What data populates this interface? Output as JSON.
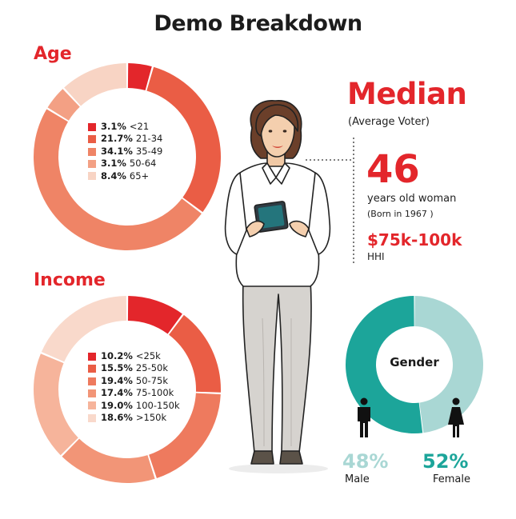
{
  "title": "Demo Breakdown",
  "age": {
    "label": "Age",
    "legend": [
      {
        "pct": "3.1%",
        "range": "<21"
      },
      {
        "pct": "21.7%",
        "range": "21-34"
      },
      {
        "pct": "34.1%",
        "range": "35-49"
      },
      {
        "pct": "3.1%",
        "range": "50-64"
      },
      {
        "pct": "8.4%",
        "range": "65+"
      }
    ]
  },
  "income": {
    "label": "Income",
    "legend": [
      {
        "pct": "10.2%",
        "range": "<25k"
      },
      {
        "pct": "15.5%",
        "range": "25-50k"
      },
      {
        "pct": "19.4%",
        "range": "50-75k"
      },
      {
        "pct": "17.4%",
        "range": "75-100k"
      },
      {
        "pct": "19.0%",
        "range": "100-150k"
      },
      {
        "pct": "18.6%",
        "range": ">150k"
      }
    ]
  },
  "median": {
    "title": "Median",
    "subtitle": "(Average Voter)",
    "age": "46",
    "age_desc": "years old woman",
    "born": "(Born in 1967 )",
    "hhi_value": "$75k-100k",
    "hhi_label": "HHI"
  },
  "gender": {
    "center_label": "Gender",
    "male_pct": "48%",
    "male_label": "Male",
    "female_pct": "52%",
    "female_label": "Female"
  },
  "colors": {
    "accent_red": "#e3262b",
    "male_teal": "#a9d7d4",
    "female_teal": "#1ca59a"
  },
  "chart_data": [
    {
      "type": "pie",
      "title": "Age",
      "categories": [
        "<21",
        "21-34",
        "35-49",
        "50-64",
        "65+"
      ],
      "values": [
        3.1,
        21.7,
        34.1,
        3.1,
        8.4
      ],
      "colors": [
        "#e3262b",
        "#ea5d45",
        "#ef8466",
        "#f3a084",
        "#f8d4c4"
      ]
    },
    {
      "type": "pie",
      "title": "Income",
      "categories": [
        "<25k",
        "25-50k",
        "50-75k",
        "75-100k",
        "100-150k",
        ">150k"
      ],
      "values": [
        10.2,
        15.5,
        19.4,
        17.4,
        19.0,
        18.6
      ],
      "colors": [
        "#e3262b",
        "#ea5d45",
        "#ee7a5e",
        "#f29577",
        "#f6b49b",
        "#f9d9cb"
      ]
    },
    {
      "type": "pie",
      "title": "Gender",
      "categories": [
        "Male",
        "Female"
      ],
      "values": [
        48,
        52
      ],
      "colors": [
        "#a9d7d4",
        "#1ca59a"
      ]
    }
  ]
}
